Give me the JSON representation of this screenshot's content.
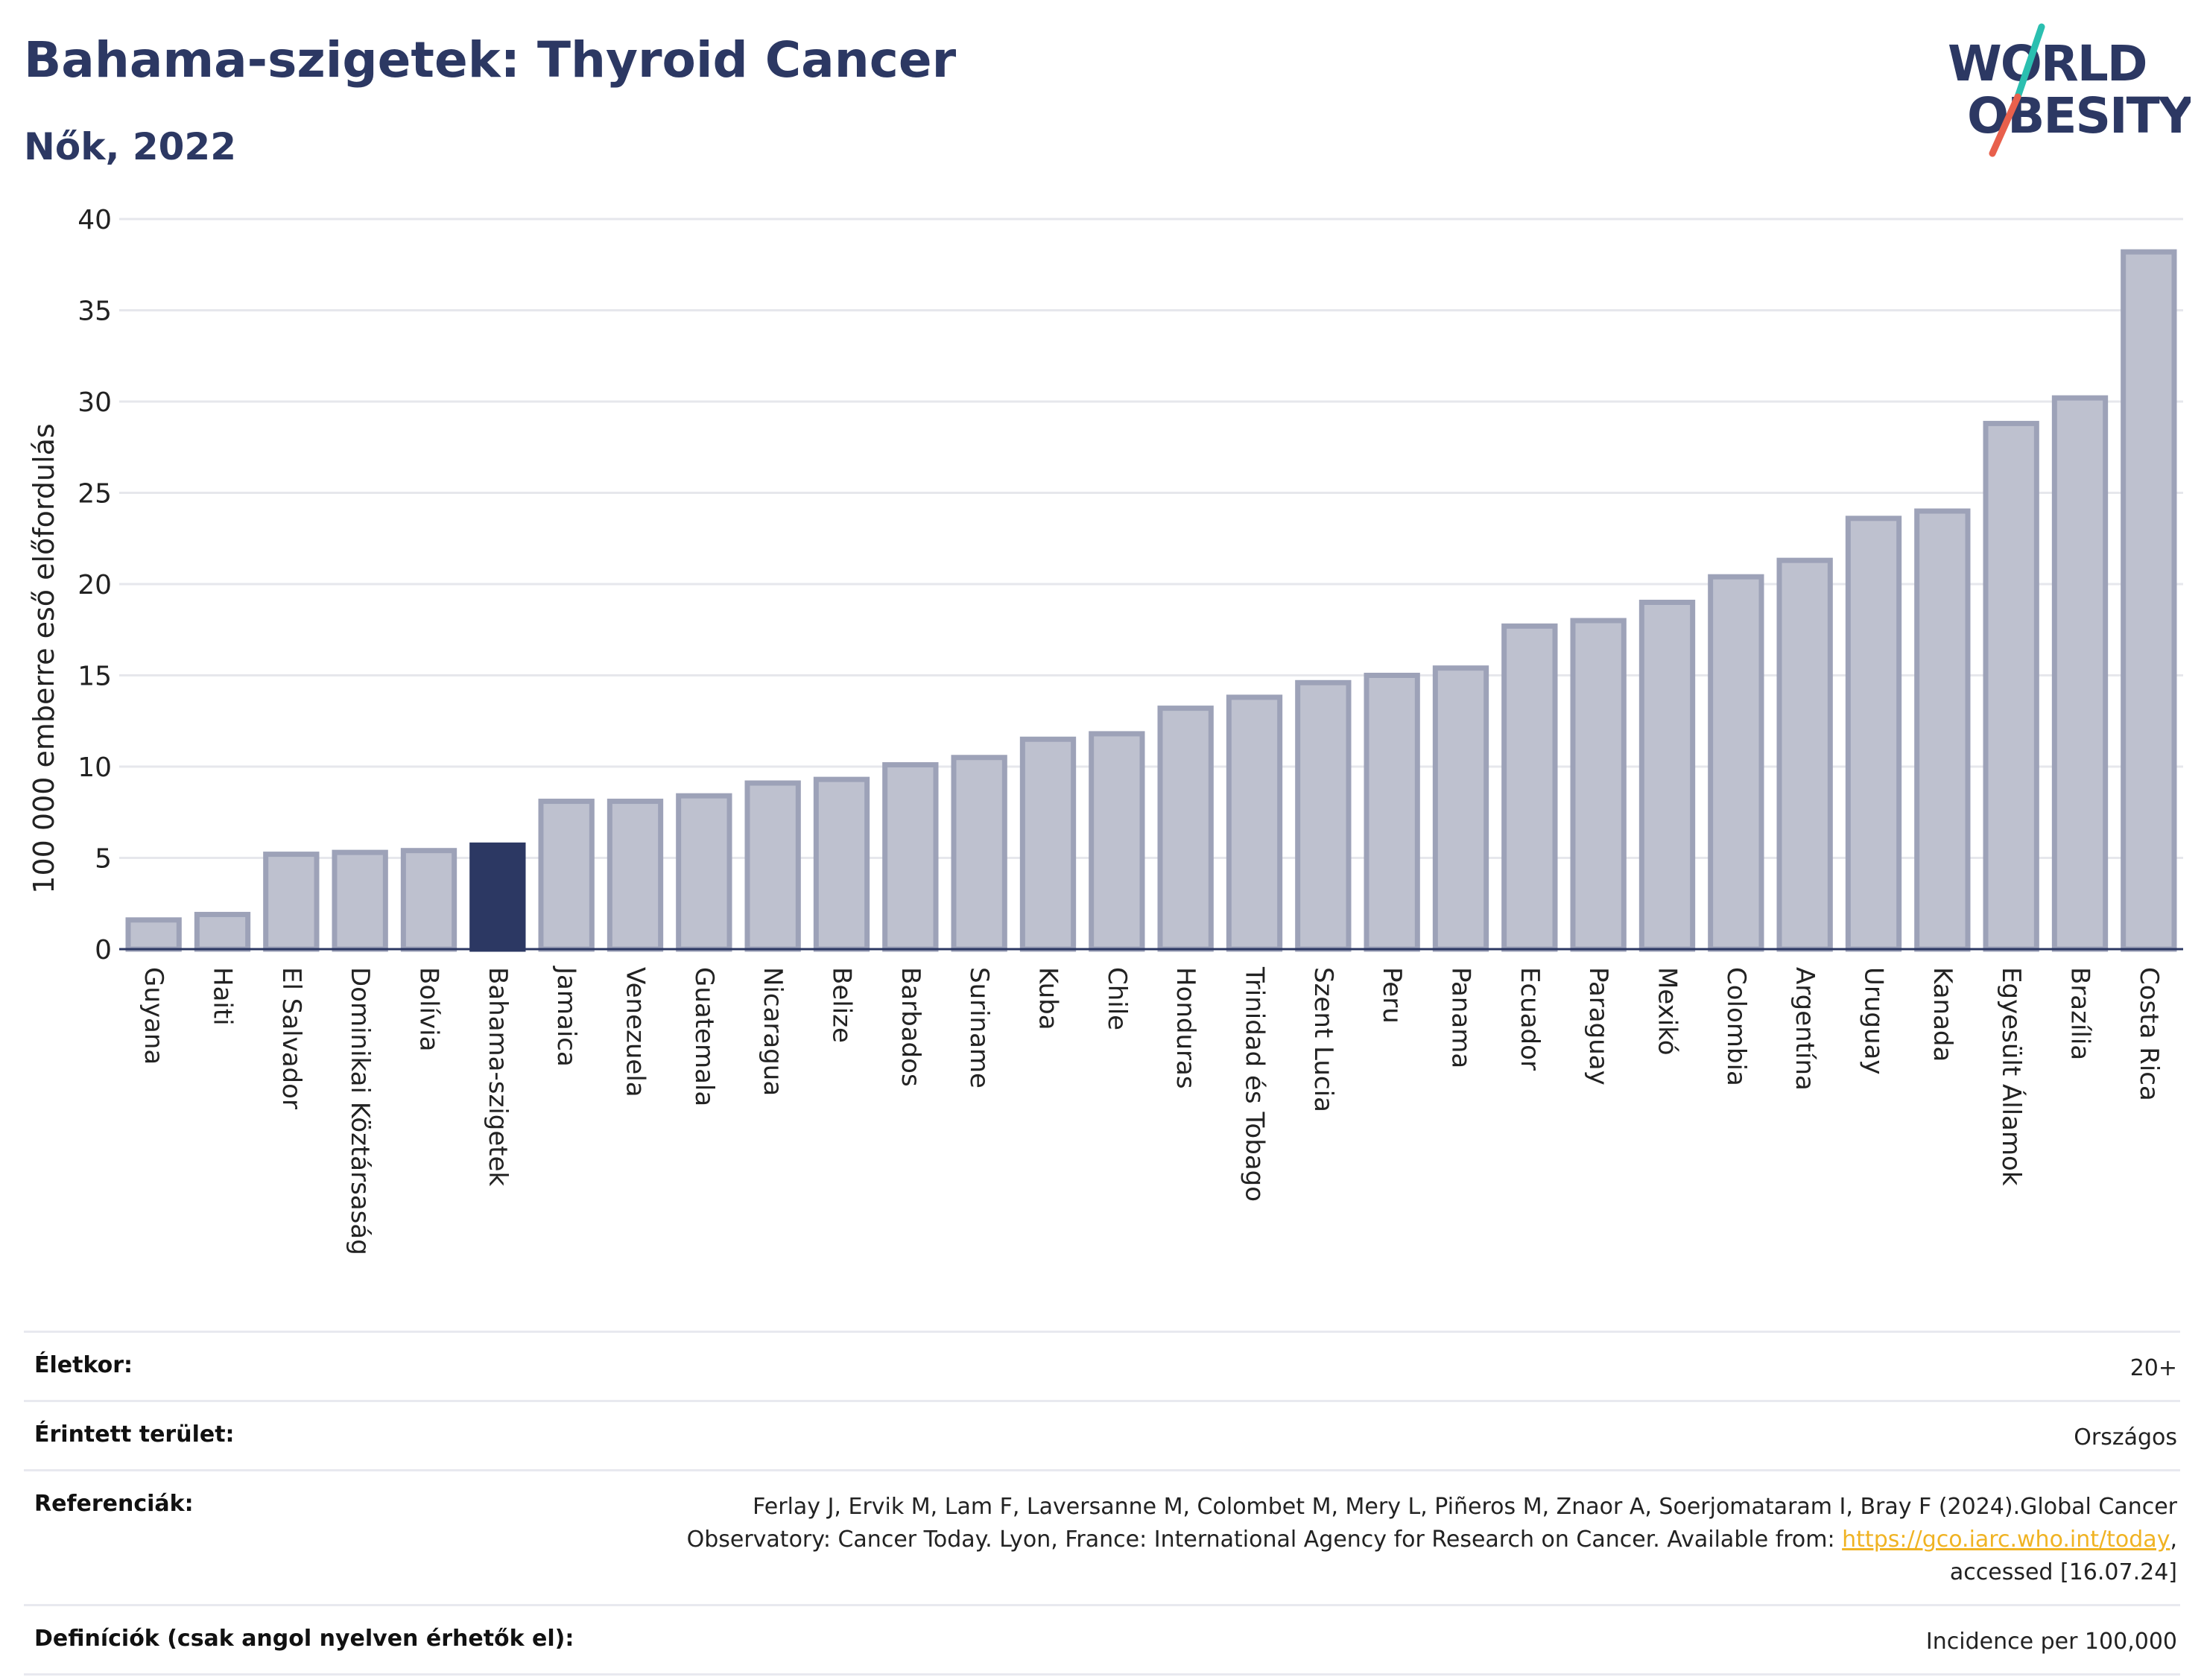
{
  "header": {
    "title": "Bahama-szigetek: Thyroid Cancer",
    "subtitle": "Nők, 2022"
  },
  "logo": {
    "line1": "WORLD",
    "line2": "OBESITY",
    "accent_colors": [
      "#2bbfb0",
      "#e8604c"
    ]
  },
  "chart_data": {
    "type": "bar",
    "ylabel": "100 000 emberre eső előfordulás",
    "ylim": [
      0,
      40
    ],
    "yticks": [
      0,
      5,
      10,
      15,
      20,
      25,
      30,
      35,
      40
    ],
    "grid": true,
    "highlight": "Bahama-szigetek",
    "colors": {
      "bar": "#bec1cf",
      "bar_border": "#9da2b8",
      "highlight": "#2c3863"
    },
    "categories": [
      "Guyana",
      "Haiti",
      "El Salvador",
      "Dominikai Köztársaság",
      "Bolívia",
      "Bahama-szigetek",
      "Jamaica",
      "Venezuela",
      "Guatemala",
      "Nicaragua",
      "Belize",
      "Barbados",
      "Suriname",
      "Kuba",
      "Chile",
      "Honduras",
      "Trinidad és Tobago",
      "Szent Lucia",
      "Peru",
      "Panama",
      "Ecuador",
      "Paraguay",
      "Mexikó",
      "Colombia",
      "Argentína",
      "Uruguay",
      "Kanada",
      "Egyesült Államok",
      "Brazília",
      "Costa Rica"
    ],
    "values": [
      1.6,
      1.9,
      5.2,
      5.3,
      5.4,
      5.7,
      8.1,
      8.1,
      8.4,
      9.1,
      9.3,
      10.1,
      10.5,
      11.5,
      11.8,
      13.2,
      13.8,
      14.6,
      15.0,
      15.4,
      17.7,
      18.0,
      19.0,
      20.4,
      21.3,
      23.6,
      24.0,
      28.8,
      30.2,
      38.2
    ]
  },
  "meta": [
    {
      "key": "Életkor:",
      "value": "20+"
    },
    {
      "key": "Érintett terület:",
      "value": "Országos"
    },
    {
      "key": "Referenciák:",
      "value_before": "Ferlay J, Ervik M, Lam F, Laversanne M, Colombet M, Mery L, Piñeros M, Znaor A, Soerjomataram I, Bray F (2024).Global Cancer Observatory: Cancer Today. Lyon, France: International Agency for Research on Cancer. Available from: ",
      "link": "https://gco.iarc.who.int/today",
      "value_after": ", accessed [16.07.24]"
    },
    {
      "key": "Definíciók (csak angol nyelven érhetők el):",
      "value": "Incidence per 100,000"
    }
  ]
}
